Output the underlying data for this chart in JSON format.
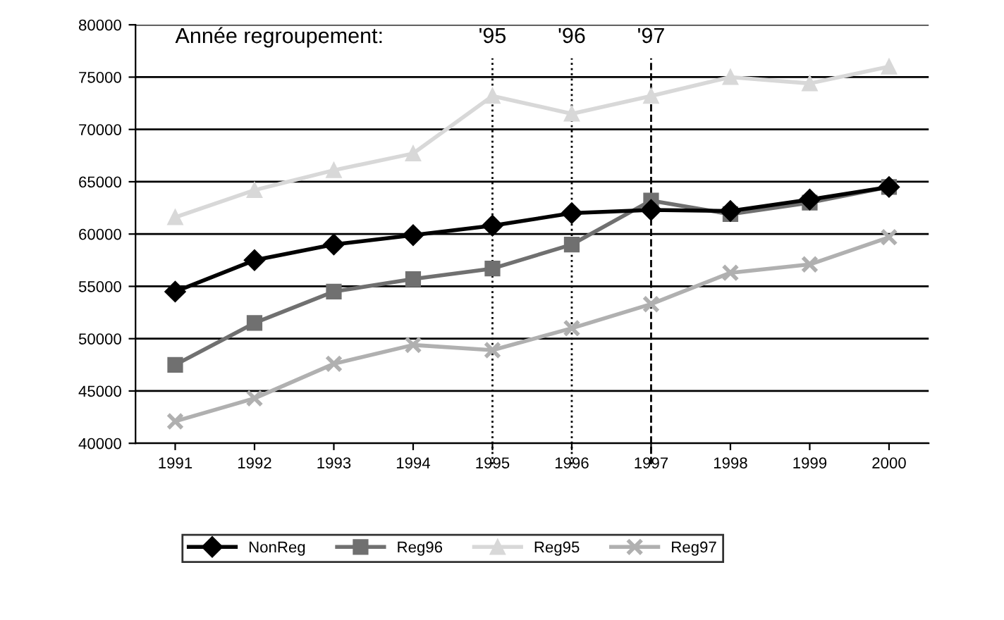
{
  "chart_data": {
    "type": "line",
    "categories": [
      "1991",
      "1992",
      "1993",
      "1994",
      "1995",
      "1996",
      "1997",
      "1998",
      "1999",
      "2000"
    ],
    "series": [
      {
        "name": "NonReg",
        "color": "#000000",
        "marker": "diamond",
        "values": [
          54500,
          57500,
          59000,
          59900,
          60800,
          62000,
          62300,
          62200,
          63300,
          64500
        ]
      },
      {
        "name": "Reg96",
        "color": "#707070",
        "marker": "square",
        "values": [
          47500,
          51500,
          54500,
          55700,
          56700,
          59000,
          63200,
          61900,
          63000,
          64500
        ]
      },
      {
        "name": "Reg95",
        "color": "#d8d8d8",
        "marker": "triangle",
        "values": [
          61600,
          64200,
          66100,
          67700,
          73200,
          71500,
          73200,
          75000,
          74400,
          76000
        ]
      },
      {
        "name": "Reg97",
        "color": "#b0b0b0",
        "marker": "cross",
        "values": [
          42100,
          44300,
          47600,
          49400,
          48900,
          51000,
          53300,
          56300,
          57100,
          59700
        ]
      }
    ],
    "ylim": [
      40000,
      80000
    ],
    "yticks": [
      40000,
      45000,
      50000,
      55000,
      60000,
      65000,
      70000,
      75000,
      80000
    ],
    "grid": "y",
    "legend": "bottom",
    "line_style": "solid",
    "ref_lines": [
      {
        "axis": "x",
        "value": "1995",
        "label": "'95",
        "line_style": "dotted",
        "color": "#000000"
      },
      {
        "axis": "x",
        "value": "1996",
        "label": "'96",
        "line_style": "dotted",
        "color": "#000000"
      },
      {
        "axis": "x",
        "value": "1997",
        "label": "'97",
        "line_style": "dashed",
        "color": "#000000"
      }
    ],
    "annotations": [
      "Année regroupement:"
    ]
  }
}
